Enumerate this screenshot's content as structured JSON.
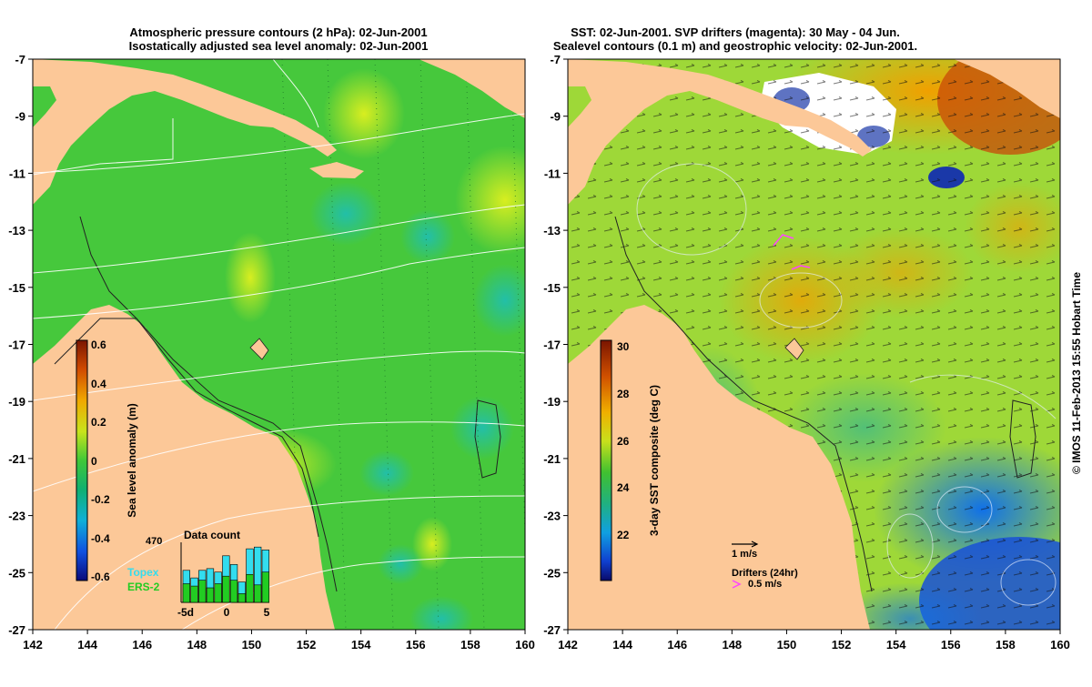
{
  "left_panel": {
    "title_line1": "Atmospheric pressure contours (2 hPa): 02-Jun-2001",
    "title_line2": "Isostatically adjusted sea level anomaly: 02-Jun-2001",
    "x_ticks": [
      "142",
      "144",
      "146",
      "148",
      "150",
      "152",
      "154",
      "156",
      "158",
      "160"
    ],
    "y_ticks": [
      "-7",
      "-9",
      "-11",
      "-13",
      "-15",
      "-17",
      "-19",
      "-21",
      "-23",
      "-25",
      "-27"
    ],
    "colorbar": {
      "label": "Sea level anomaly (m)",
      "ticks": [
        "0.6",
        "0.4",
        "0.2",
        "0",
        "-0.2",
        "-0.4",
        "-0.6"
      ]
    },
    "data_count": {
      "title": "Data count",
      "max_label": "470",
      "x_ticks": [
        "-5d",
        "0",
        "5"
      ],
      "series": [
        {
          "name": "Topex",
          "color": "#33ddee",
          "values": [
            0.55,
            0.42,
            0.55,
            0.58,
            0.52,
            0.8,
            0.65,
            0.35,
            0.92,
            0.95,
            0.9
          ]
        },
        {
          "name": "ERS-2",
          "color": "#22cc22",
          "values": [
            0.32,
            0.28,
            0.38,
            0.25,
            0.32,
            0.45,
            0.38,
            0.15,
            0.48,
            0.3,
            0.52
          ]
        }
      ]
    }
  },
  "right_panel": {
    "title_line1": "SST: 02-Jun-2001. SVP drifters (magenta): 30 May - 04 Jun.",
    "title_line2": "Sealevel contours (0.1 m) and geostrophic velocity: 02-Jun-2001.",
    "x_ticks": [
      "142",
      "144",
      "146",
      "148",
      "150",
      "152",
      "154",
      "156",
      "158",
      "160"
    ],
    "y_ticks": [
      "-7",
      "-9",
      "-11",
      "-13",
      "-15",
      "-17",
      "-19",
      "-21",
      "-23",
      "-25",
      "-27"
    ],
    "colorbar": {
      "label": "3-day SST composite (deg C)",
      "ticks": [
        "30",
        "28",
        "26",
        "24",
        "22"
      ]
    },
    "velocity_scale": "1 m/s",
    "drifters_label": "Drifters (24hr)",
    "drifter_scale": "0.5 m/s"
  },
  "credit": "© IMOS 11-Feb-2013 15:55 Hobart Time",
  "colors": {
    "land": "#fcc898",
    "ocean_left": "#46c83c",
    "ocean_right": "#9ed838",
    "drifter": "#ff44ff"
  }
}
